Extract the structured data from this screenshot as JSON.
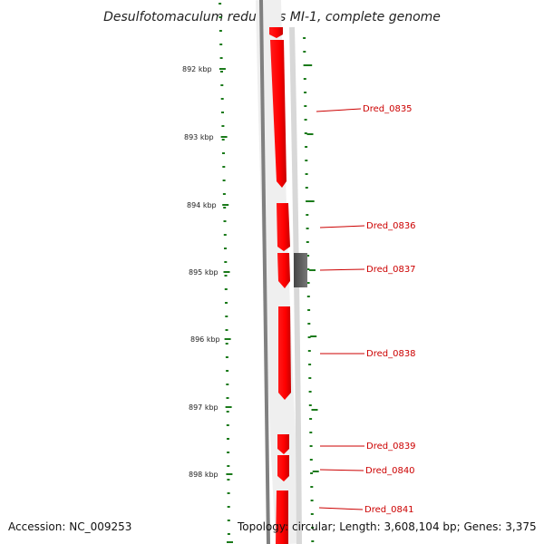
{
  "title": "Desulfotomaculum reducens MI-1, complete genome",
  "footer": {
    "accession": "Accession: NC_009253",
    "topology": "Topology: circular; Length: 3,608,104 bp; Genes: 3,375"
  },
  "colors": {
    "forward_gene": "#ff0000",
    "other_feature": "#555555",
    "backbone": "#808080",
    "tick": "#1a7a1a",
    "label": "#cc0000"
  },
  "scale_labels": [
    "892 kbp",
    "893 kbp",
    "894 kbp",
    "895 kbp",
    "896 kbp",
    "897 kbp",
    "898 kbp"
  ],
  "gene_labels": [
    "Dred_0835",
    "Dred_0836",
    "Dred_0837",
    "Dred_0838",
    "Dred_0839",
    "Dred_0840",
    "Dred_0841"
  ]
}
